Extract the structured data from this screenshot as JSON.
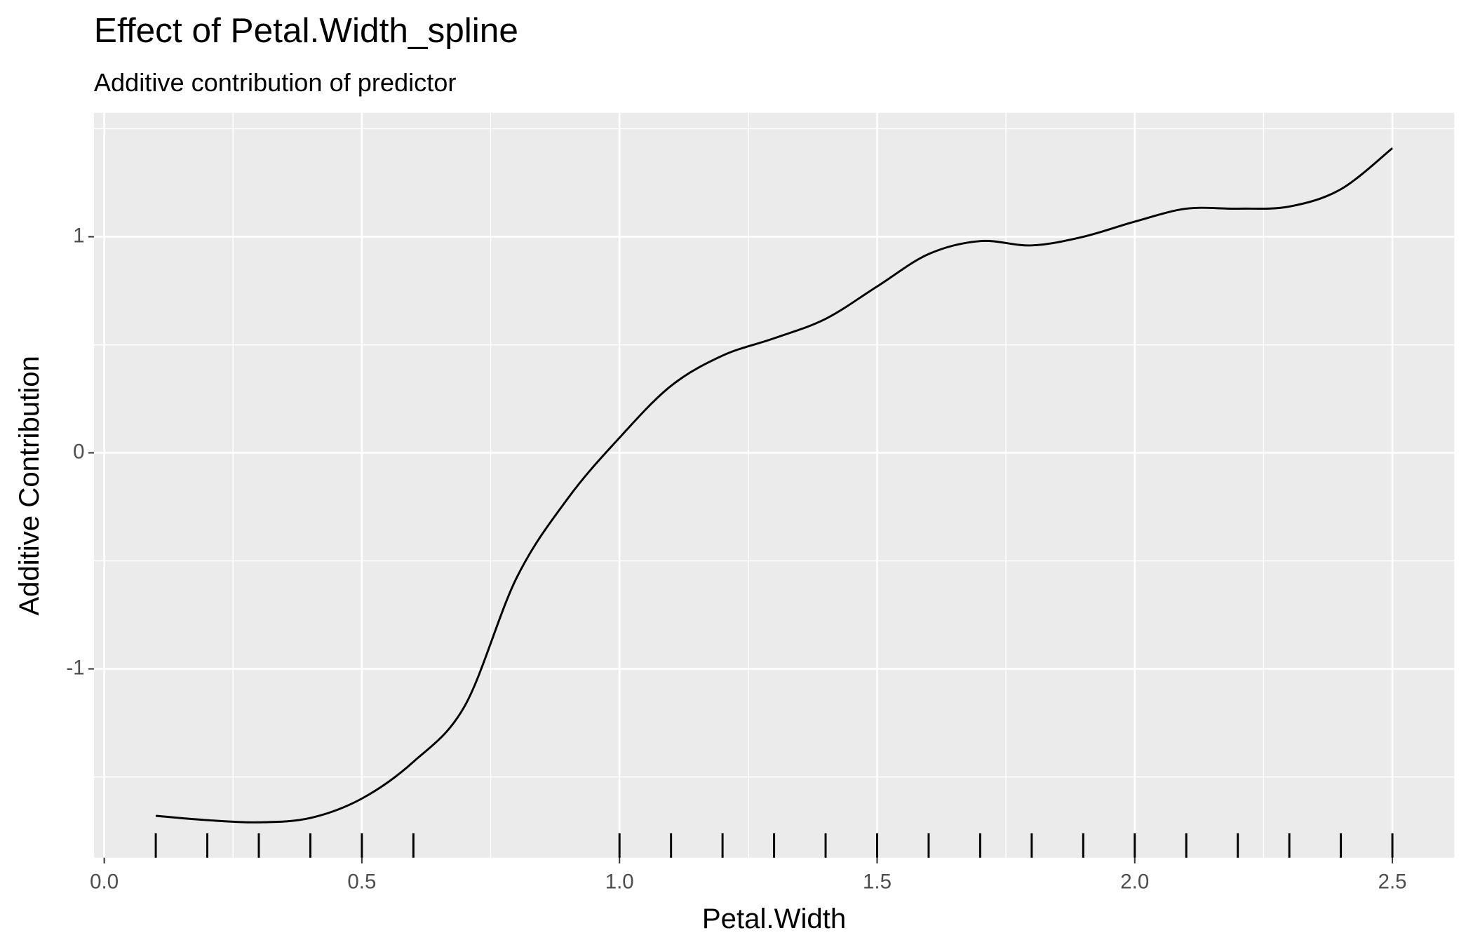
{
  "chart_data": {
    "type": "line",
    "title": "Effect of Petal.Width_spline",
    "subtitle": "Additive contribution of predictor",
    "x_label": "Petal.Width",
    "y_label": "Additive Contribution",
    "x": [
      0.1,
      0.2,
      0.3,
      0.4,
      0.5,
      0.6,
      0.7,
      0.8,
      0.9,
      1.0,
      1.1,
      1.2,
      1.3,
      1.4,
      1.5,
      1.6,
      1.7,
      1.8,
      1.9,
      2.0,
      2.1,
      2.2,
      2.3,
      2.4,
      2.5
    ],
    "series": [
      {
        "color": "#000000",
        "values": [
          -1.68,
          -1.7,
          -1.71,
          -1.69,
          -1.6,
          -1.43,
          -1.17,
          -0.58,
          -0.21,
          0.07,
          0.31,
          0.45,
          0.53,
          0.62,
          0.77,
          0.92,
          0.98,
          0.96,
          1.0,
          1.07,
          1.13,
          1.13,
          1.14,
          1.22,
          1.41
        ]
      }
    ],
    "rug": [
      0.1,
      0.2,
      0.3,
      0.4,
      0.5,
      0.6,
      1.0,
      1.1,
      1.2,
      1.3,
      1.4,
      1.5,
      1.6,
      1.7,
      1.8,
      1.9,
      2.0,
      2.1,
      2.2,
      2.3,
      2.4,
      2.5
    ],
    "xlim": [
      -0.02,
      2.62
    ],
    "ylim": [
      -1.874,
      1.574
    ],
    "xticks": [
      {
        "value": 0,
        "label": "0.0"
      },
      0.5,
      {
        "value": 1,
        "label": "1.0"
      },
      1.5,
      {
        "value": 2,
        "label": "2.0"
      },
      2.5
    ],
    "yticks": [
      -1,
      0,
      1
    ],
    "grid": true
  }
}
